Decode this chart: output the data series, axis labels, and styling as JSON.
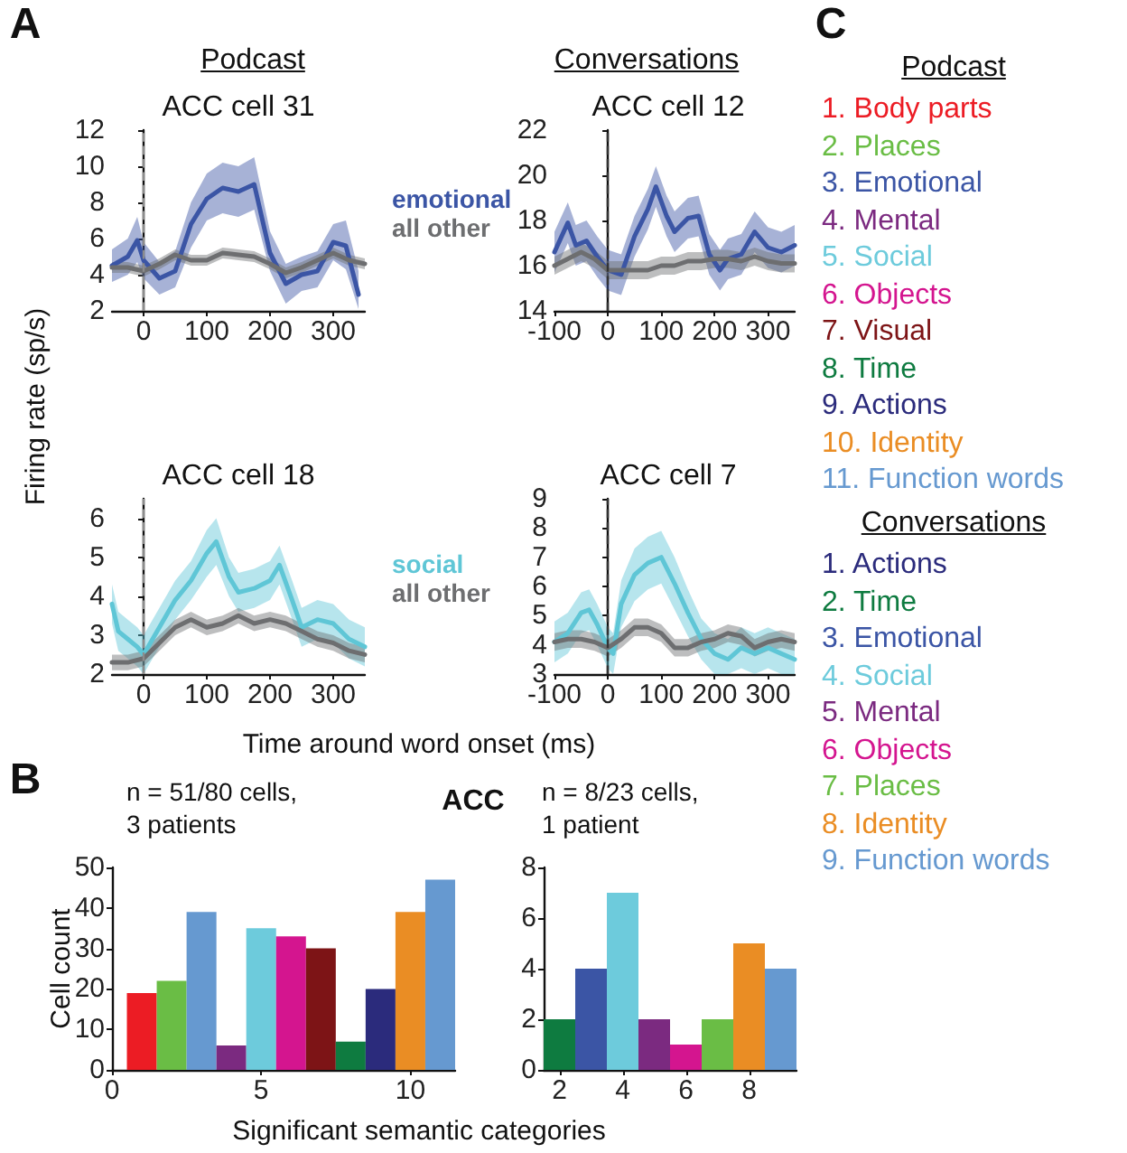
{
  "chart_data": [
    {
      "type": "line",
      "title": "ACC cell 31",
      "ylabel": "Firing rate (sp/s)",
      "annotations": [
        "A",
        "Podcast"
      ],
      "xlim": [
        -50,
        350
      ],
      "xticks": [
        0,
        100,
        200,
        300
      ],
      "ylim": [
        2,
        12
      ],
      "yticks": [
        2,
        4,
        6,
        8,
        10,
        12
      ],
      "legend": "right",
      "ref_lines": [
        {
          "axis": "x",
          "value": 0,
          "color": "#8c8c8c",
          "line_style": "dashed"
        }
      ],
      "series": [
        {
          "name": "emotional",
          "color": "#3b55a5",
          "x": [
            -50,
            -25,
            -10,
            0,
            25,
            50,
            75,
            100,
            125,
            150,
            175,
            200,
            225,
            250,
            275,
            300,
            320,
            340
          ],
          "values": [
            4.5,
            5,
            5.9,
            4.8,
            3.8,
            4.2,
            6.8,
            8.2,
            8.8,
            8.6,
            9,
            5.2,
            3.5,
            4,
            4.2,
            5.8,
            5.6,
            2.9
          ],
          "upper": [
            5.4,
            6,
            7.2,
            5.8,
            4.7,
            5.3,
            8,
            9.6,
            10.2,
            10,
            10.5,
            6.4,
            4.6,
            5,
            5.3,
            6.8,
            7,
            4.2
          ],
          "lower": [
            3.6,
            4,
            4.7,
            3.8,
            2.9,
            3.3,
            5.5,
            7,
            7.4,
            7.2,
            7.6,
            4.2,
            2.4,
            3.1,
            3.3,
            4.8,
            4.3,
            2.1
          ]
        },
        {
          "name": "all other",
          "color": "#6d6e70",
          "x": [
            -50,
            -25,
            0,
            25,
            50,
            75,
            100,
            125,
            150,
            175,
            200,
            225,
            250,
            275,
            300,
            325,
            350
          ],
          "values": [
            4.4,
            4.4,
            4.2,
            4.6,
            5.1,
            4.8,
            4.8,
            5.2,
            5.1,
            5,
            4.6,
            4.1,
            4.4,
            4.8,
            5.2,
            4.8,
            4.6
          ],
          "upper": [
            4.7,
            4.7,
            4.5,
            4.9,
            5.4,
            5.1,
            5.1,
            5.5,
            5.4,
            5.3,
            4.9,
            4.4,
            4.7,
            5.1,
            5.5,
            5.1,
            4.9
          ],
          "lower": [
            4.1,
            4.1,
            3.9,
            4.3,
            4.8,
            4.5,
            4.5,
            4.9,
            4.8,
            4.7,
            4.3,
            3.8,
            4.1,
            4.5,
            4.9,
            4.5,
            4.3
          ]
        }
      ]
    },
    {
      "type": "line",
      "title": "ACC cell 12",
      "annotations": [
        "Conversations"
      ],
      "xlim": [
        -100,
        350
      ],
      "xticks": [
        -100,
        0,
        100,
        200,
        300
      ],
      "ylim": [
        14,
        22
      ],
      "yticks": [
        14,
        16,
        18,
        20,
        22
      ],
      "ref_lines": [
        {
          "axis": "x",
          "value": 0,
          "color": "#333333",
          "line_style": "dashed"
        }
      ],
      "series": [
        {
          "color": "#3b55a5",
          "x": [
            -100,
            -75,
            -60,
            -40,
            -20,
            0,
            25,
            50,
            75,
            90,
            110,
            125,
            150,
            170,
            190,
            210,
            225,
            250,
            275,
            300,
            325,
            350
          ],
          "values": [
            16.6,
            17.9,
            16.9,
            17.1,
            16.4,
            15.8,
            15.6,
            17.3,
            18.5,
            19.5,
            18.2,
            17.5,
            18.1,
            18.2,
            16.5,
            15.8,
            16.3,
            16.5,
            17.5,
            16.8,
            16.6,
            16.9
          ],
          "upper": [
            17.5,
            18.8,
            17.8,
            18,
            17.3,
            16.7,
            16.5,
            18.2,
            19.4,
            20.4,
            19.1,
            18.4,
            19,
            19.1,
            17.4,
            16.7,
            17.2,
            17.4,
            18.4,
            17.7,
            17.5,
            17.8
          ],
          "lower": [
            15.7,
            17,
            16,
            16.2,
            15.5,
            14.9,
            14.7,
            16.4,
            17.6,
            18.6,
            17.3,
            16.6,
            17.2,
            17.3,
            15.6,
            14.9,
            15.4,
            15.6,
            16.6,
            15.9,
            15.7,
            16
          ]
        },
        {
          "color": "#6d6e70",
          "x": [
            -100,
            -75,
            -50,
            -25,
            0,
            25,
            50,
            75,
            100,
            125,
            150,
            175,
            200,
            225,
            250,
            275,
            300,
            325,
            350
          ],
          "values": [
            16,
            16.3,
            16.6,
            16.3,
            15.8,
            15.8,
            15.8,
            15.8,
            16,
            16,
            16.2,
            16.2,
            16.3,
            16.3,
            16.2,
            16.4,
            16.2,
            16.1,
            16.1
          ],
          "upper": [
            16.4,
            16.7,
            17,
            16.7,
            16.2,
            16.2,
            16.2,
            16.2,
            16.4,
            16.4,
            16.6,
            16.6,
            16.7,
            16.7,
            16.6,
            16.8,
            16.6,
            16.5,
            16.5
          ],
          "lower": [
            15.6,
            15.9,
            16.2,
            15.9,
            15.4,
            15.4,
            15.4,
            15.4,
            15.6,
            15.6,
            15.8,
            15.8,
            15.9,
            15.9,
            15.8,
            16,
            15.8,
            15.7,
            15.7
          ]
        }
      ]
    },
    {
      "type": "line",
      "title": "ACC cell 18",
      "xlabel": "Time around word onset (ms)",
      "xlim": [
        -50,
        350
      ],
      "xticks": [
        0,
        100,
        200,
        300
      ],
      "ylim": [
        2,
        6.5
      ],
      "yticks": [
        2,
        3,
        4,
        5,
        6
      ],
      "legend": "right",
      "ref_lines": [
        {
          "axis": "x",
          "value": 0,
          "color": "#8c8c8c",
          "line_style": "dashed"
        }
      ],
      "series": [
        {
          "name": "social",
          "color": "#5fc6d6",
          "x": [
            -50,
            -40,
            -25,
            -10,
            0,
            25,
            50,
            75,
            100,
            115,
            135,
            150,
            175,
            200,
            215,
            235,
            250,
            275,
            300,
            325,
            350
          ],
          "values": [
            3.8,
            3.1,
            2.9,
            2.7,
            2.5,
            3.2,
            3.9,
            4.4,
            5.1,
            5.4,
            4.5,
            4.1,
            4.2,
            4.4,
            4.8,
            3.9,
            3.2,
            3.4,
            3.3,
            2.9,
            2.7
          ],
          "upper": [
            4.3,
            3.6,
            3.4,
            3.2,
            3,
            3.7,
            4.4,
            4.9,
            5.7,
            6,
            5,
            4.6,
            4.7,
            4.9,
            5.3,
            4.4,
            3.7,
            3.9,
            3.8,
            3.4,
            3.2
          ],
          "lower": [
            3.3,
            2.6,
            2.4,
            2.2,
            2,
            2.7,
            3.4,
            3.9,
            4.5,
            4.8,
            4,
            3.6,
            3.7,
            3.9,
            4.3,
            3.4,
            2.7,
            2.9,
            2.8,
            2.4,
            2.2
          ]
        },
        {
          "name": "all other",
          "color": "#6d6e70",
          "x": [
            -50,
            -25,
            0,
            25,
            50,
            75,
            100,
            125,
            150,
            175,
            200,
            225,
            250,
            275,
            300,
            325,
            350
          ],
          "values": [
            2.3,
            2.3,
            2.4,
            2.8,
            3.2,
            3.4,
            3.2,
            3.3,
            3.5,
            3.3,
            3.4,
            3.3,
            3.1,
            2.9,
            2.8,
            2.6,
            2.5
          ],
          "upper": [
            2.5,
            2.5,
            2.6,
            3,
            3.4,
            3.6,
            3.4,
            3.5,
            3.7,
            3.5,
            3.6,
            3.5,
            3.3,
            3.1,
            3,
            2.8,
            2.7
          ],
          "lower": [
            2.1,
            2.1,
            2.2,
            2.6,
            3,
            3.2,
            3,
            3.1,
            3.3,
            3.1,
            3.2,
            3.1,
            2.9,
            2.7,
            2.6,
            2.4,
            2.3
          ]
        }
      ]
    },
    {
      "type": "line",
      "title": "ACC cell 7",
      "xlim": [
        -100,
        350
      ],
      "xticks": [
        -100,
        0,
        100,
        200,
        300
      ],
      "ylim": [
        3,
        9
      ],
      "yticks": [
        3,
        4,
        5,
        6,
        7,
        8,
        9
      ],
      "ref_lines": [
        {
          "axis": "x",
          "value": 0,
          "color": "#333333",
          "line_style": "dashed"
        }
      ],
      "series": [
        {
          "color": "#5fc6d6",
          "x": [
            -100,
            -75,
            -50,
            -35,
            -20,
            0,
            10,
            25,
            50,
            75,
            100,
            125,
            150,
            175,
            200,
            225,
            250,
            275,
            300,
            325,
            350
          ],
          "values": [
            4.1,
            4.4,
            5.1,
            5.2,
            4.7,
            3.9,
            3.7,
            5.4,
            6.4,
            6.8,
            7,
            6.1,
            5.1,
            4.2,
            3.7,
            3.5,
            3.9,
            3.7,
            3.9,
            3.7,
            3.5
          ],
          "upper": [
            4.8,
            5.1,
            5.8,
            5.9,
            5.4,
            4.6,
            4.4,
            6.2,
            7.3,
            7.7,
            7.9,
            7,
            5.9,
            4.9,
            4.4,
            4.2,
            4.6,
            4.4,
            4.6,
            4.4,
            4.2
          ],
          "lower": [
            3.4,
            3.7,
            4.4,
            4.5,
            4,
            3.2,
            3,
            4.6,
            5.5,
            5.9,
            6.1,
            5.2,
            4.3,
            3.5,
            3,
            3,
            3.2,
            3,
            3.2,
            3,
            3
          ]
        },
        {
          "color": "#6d6e70",
          "x": [
            -100,
            -75,
            -50,
            -25,
            0,
            25,
            50,
            75,
            100,
            125,
            150,
            175,
            200,
            225,
            250,
            275,
            300,
            325,
            350
          ],
          "values": [
            4.1,
            4.2,
            4.2,
            4.1,
            3.9,
            4.2,
            4.6,
            4.6,
            4.4,
            3.9,
            3.9,
            4.1,
            4.2,
            4.4,
            4.3,
            3.9,
            4.1,
            4.2,
            4.1
          ],
          "upper": [
            4.4,
            4.5,
            4.5,
            4.4,
            4.2,
            4.5,
            4.9,
            4.9,
            4.7,
            4.2,
            4.2,
            4.4,
            4.5,
            4.7,
            4.6,
            4.2,
            4.4,
            4.5,
            4.4
          ],
          "lower": [
            3.8,
            3.9,
            3.9,
            3.8,
            3.6,
            3.9,
            4.3,
            4.3,
            4.1,
            3.6,
            3.6,
            3.8,
            3.9,
            4.1,
            4,
            3.6,
            3.8,
            3.9,
            3.8
          ]
        }
      ]
    },
    {
      "type": "bar",
      "title": "ACC",
      "xlabel": "Significant semantic categories",
      "ylabel": "Cell count",
      "annotations": [
        "B",
        "n = 51/80 cells,",
        "3 patients"
      ],
      "x": [
        1,
        2,
        3,
        4,
        5,
        6,
        7,
        8,
        9,
        10,
        11
      ],
      "values": [
        19,
        22,
        39,
        6,
        35,
        33,
        30,
        7,
        20,
        39,
        47
      ],
      "colors": [
        "#ec1c24",
        "#6abd45",
        "#6699d0",
        "#7b2a80",
        "#6dcbdc",
        "#d4158f",
        "#7d1416",
        "#0e7b40",
        "#2b2b7c",
        "#ea8d24",
        "#6699d0"
      ],
      "xlim": [
        0,
        11.5
      ],
      "xticks": [
        0,
        5,
        10
      ],
      "ylim": [
        0,
        50
      ],
      "yticks": [
        0,
        10,
        20,
        30,
        40,
        50
      ]
    },
    {
      "type": "bar",
      "annotations": [
        "n = 8/23 cells,",
        "1 patient"
      ],
      "x": [
        2,
        3,
        4,
        5,
        6,
        7,
        8,
        9
      ],
      "values": [
        2,
        4,
        7,
        2,
        1,
        2,
        5,
        4
      ],
      "colors": [
        "#0e7b40",
        "#3b55a5",
        "#6dcbdc",
        "#7b2a80",
        "#d4158f",
        "#6abd45",
        "#ea8d24",
        "#6699d0"
      ],
      "xlim": [
        1.5,
        9.5
      ],
      "xticks": [
        2,
        4,
        6,
        8
      ],
      "ylim": [
        0,
        8
      ],
      "yticks": [
        0,
        2,
        4,
        6,
        8
      ]
    },
    {
      "type": "other",
      "title": "Podcast",
      "annotations": [
        "C"
      ],
      "categories": [
        "1. Body parts",
        "2. Places",
        "3. Emotional",
        "4. Mental",
        "5. Social",
        "6. Objects",
        "7. Visual",
        "8. Time",
        "9. Actions",
        "10. Identity",
        "11. Function words"
      ],
      "colors": [
        "#ec1c24",
        "#6abd45",
        "#3b55a5",
        "#7b2a80",
        "#6dcbdc",
        "#d4158f",
        "#7d1416",
        "#0e7b40",
        "#2b2b7c",
        "#ea8d24",
        "#6699d0"
      ]
    },
    {
      "type": "other",
      "title": "Conversations",
      "categories": [
        "1. Actions",
        "2. Time",
        "3. Emotional",
        "4. Social",
        "5. Mental",
        "6. Objects",
        "7. Places",
        "8. Identity",
        "9. Function words"
      ],
      "colors": [
        "#2b2b7c",
        "#0e7b40",
        "#3b55a5",
        "#6dcbdc",
        "#7b2a80",
        "#d4158f",
        "#6abd45",
        "#ea8d24",
        "#6699d0"
      ]
    }
  ]
}
